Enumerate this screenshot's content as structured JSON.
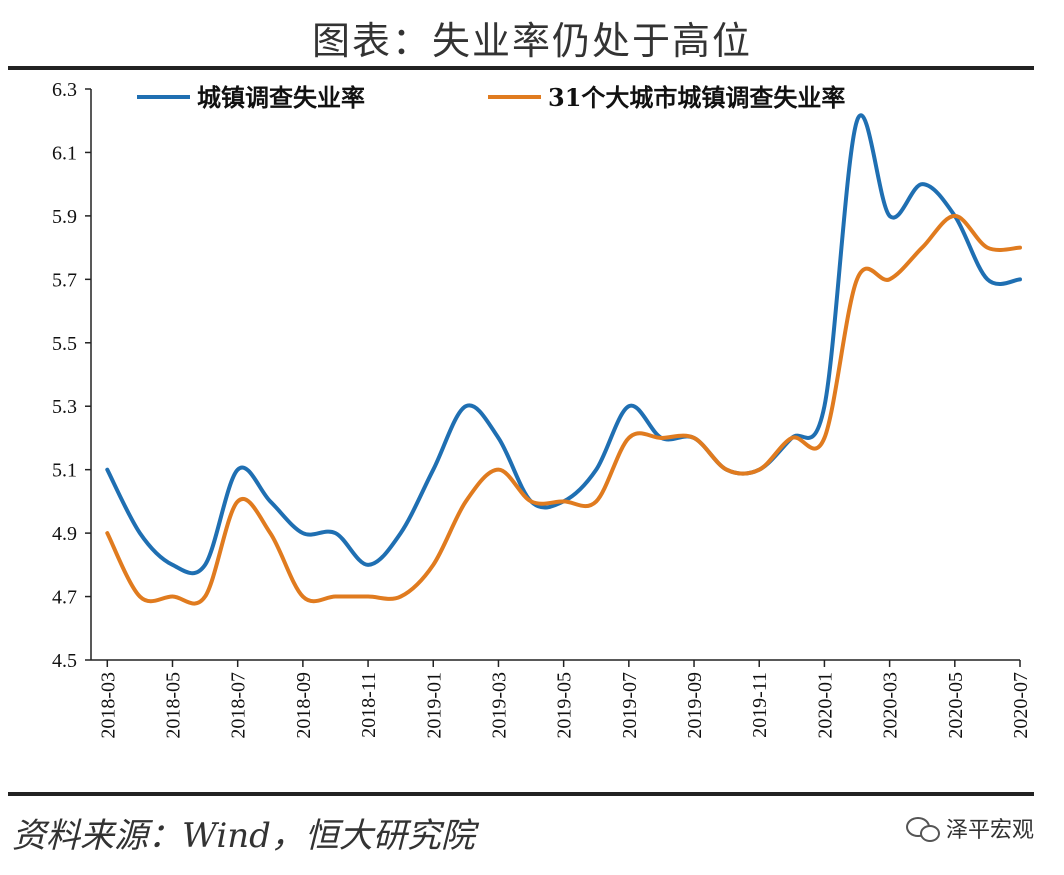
{
  "title": "图表：失业率仍处于高位",
  "source": "资料来源：Wind，恒大研究院",
  "brand": "泽平宏观",
  "chart_data": {
    "type": "line",
    "title": "图表：失业率仍处于高位",
    "x": [
      "2018-03",
      "2018-04",
      "2018-05",
      "2018-06",
      "2018-07",
      "2018-08",
      "2018-09",
      "2018-10",
      "2018-11",
      "2018-12",
      "2019-01",
      "2019-02",
      "2019-03",
      "2019-04",
      "2019-05",
      "2019-06",
      "2019-07",
      "2019-08",
      "2019-09",
      "2019-10",
      "2019-11",
      "2019-12",
      "2020-01",
      "2020-02",
      "2020-03",
      "2020-04",
      "2020-05",
      "2020-06",
      "2020-07"
    ],
    "x_tick_labels": [
      "2018-03",
      "2018-05",
      "2018-07",
      "2018-09",
      "2018-11",
      "2019-01",
      "2019-03",
      "2019-05",
      "2019-07",
      "2019-09",
      "2019-11",
      "2020-01",
      "2020-03",
      "2020-05",
      "2020-07"
    ],
    "y_ticks": [
      "4.5",
      "4.7",
      "4.9",
      "5.1",
      "5.3",
      "5.5",
      "5.7",
      "5.9",
      "6.1",
      "6.3"
    ],
    "ylim": [
      4.5,
      6.3
    ],
    "grid": false,
    "legend_position": "top",
    "series": [
      {
        "name": "城镇调查失业率",
        "color": "#1f6fb2",
        "values": [
          5.1,
          4.9,
          4.8,
          4.8,
          5.1,
          5.0,
          4.9,
          4.9,
          4.8,
          4.9,
          5.1,
          5.3,
          5.2,
          5.0,
          5.0,
          5.1,
          5.3,
          5.2,
          5.2,
          5.1,
          5.1,
          5.2,
          5.3,
          6.2,
          5.9,
          6.0,
          5.9,
          5.7,
          5.7
        ]
      },
      {
        "name": "31个大城市城镇调查失业率",
        "color": "#e07b1f",
        "values": [
          4.9,
          4.7,
          4.7,
          4.7,
          5.0,
          4.9,
          4.7,
          4.7,
          4.7,
          4.7,
          4.8,
          5.0,
          5.1,
          5.0,
          5.0,
          5.0,
          5.2,
          5.2,
          5.2,
          5.1,
          5.1,
          5.2,
          5.2,
          5.7,
          5.7,
          5.8,
          5.9,
          5.8,
          5.8
        ]
      }
    ]
  }
}
